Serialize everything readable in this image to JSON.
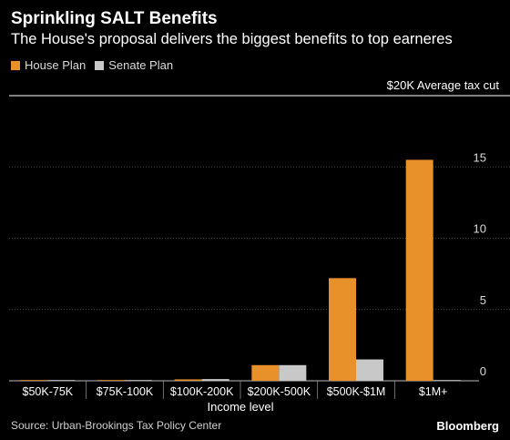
{
  "header": {
    "title": "Sprinkling SALT Benefits",
    "subtitle": "The House's proposal delivers the biggest benefits to top earneres"
  },
  "legend": [
    {
      "label": "House Plan",
      "color": "#e8912a"
    },
    {
      "label": "Senate Plan",
      "color": "#c8c8c8"
    }
  ],
  "unit_label": "$20K Average tax cut",
  "source": "Source: Urban-Brookings Tax Policy Center",
  "brand": "Bloomberg",
  "chart_data": {
    "type": "bar",
    "title": "Sprinkling SALT Benefits",
    "subtitle": "The House's proposal delivers the biggest benefits to top earneres",
    "xlabel": "Income level",
    "ylabel": "$20K Average tax cut",
    "categories": [
      "$50K-75K",
      "$75K-100K",
      "$100K-200K",
      "$200K-500K",
      "$500K-$1M",
      "$1M+"
    ],
    "series": [
      {
        "name": "House Plan",
        "color": "#e8912a",
        "values": [
          0.02,
          0.03,
          0.1,
          1.1,
          7.2,
          15.5
        ]
      },
      {
        "name": "Senate Plan",
        "color": "#c8c8c8",
        "values": [
          0.01,
          0.02,
          0.12,
          1.1,
          1.5,
          0.05
        ]
      }
    ],
    "ylim": [
      0,
      20
    ],
    "yticks": [
      0,
      5,
      10,
      15
    ],
    "grid": true,
    "legend_position": "top-left"
  }
}
